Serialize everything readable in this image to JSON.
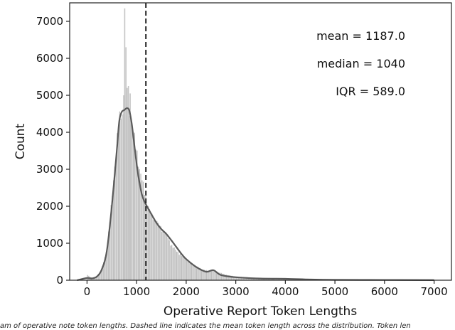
{
  "chart_data": {
    "type": "histogram",
    "xlabel": "Operative Report Token Lengths",
    "ylabel": "Count",
    "xlim": [
      -350,
      7350
    ],
    "ylim": [
      0,
      7500
    ],
    "xticks": [
      0,
      1000,
      2000,
      3000,
      4000,
      5000,
      6000,
      7000
    ],
    "yticks": [
      0,
      1000,
      2000,
      3000,
      4000,
      5000,
      6000,
      7000
    ],
    "bin_width": 25,
    "histogram": {
      "x": [
        0,
        100,
        200,
        300,
        400,
        500,
        600,
        650,
        700,
        740,
        770,
        800,
        830,
        860,
        900,
        950,
        1000,
        1050,
        1100,
        1150,
        1200,
        1300,
        1400,
        1500,
        1600,
        1700,
        1800,
        2000,
        2200,
        2400,
        2600,
        2800,
        3000,
        3500,
        4000,
        4500,
        5000,
        6000,
        7000
      ],
      "values": [
        150,
        60,
        110,
        300,
        800,
        2100,
        3700,
        4300,
        4500,
        4550,
        4600,
        4700,
        4700,
        4600,
        4300,
        3900,
        3500,
        3100,
        2800,
        2450,
        2150,
        1750,
        1600,
        1400,
        1250,
        950,
        800,
        560,
        370,
        260,
        240,
        150,
        100,
        60,
        50,
        20,
        10,
        5,
        3
      ],
      "spikes": [
        {
          "x": 760,
          "value": 7350
        },
        {
          "x": 785,
          "value": 6300
        },
        {
          "x": 810,
          "value": 5200
        },
        {
          "x": 835,
          "value": 5250
        },
        {
          "x": 870,
          "value": 5050
        },
        {
          "x": 740,
          "value": 5000
        }
      ],
      "color": "#bdbdbd"
    },
    "kde": {
      "x": [
        -200,
        0,
        100,
        200,
        300,
        400,
        500,
        600,
        650,
        700,
        750,
        800,
        850,
        900,
        950,
        1000,
        1050,
        1100,
        1150,
        1200,
        1250,
        1300,
        1400,
        1500,
        1600,
        1700,
        1800,
        1900,
        2000,
        2200,
        2400,
        2550,
        2700,
        3000,
        3500,
        4000,
        4500,
        5000,
        6000,
        7000
      ],
      "values": [
        0,
        60,
        50,
        100,
        300,
        800,
        2000,
        3500,
        4300,
        4550,
        4600,
        4650,
        4600,
        4250,
        3700,
        3150,
        2700,
        2350,
        2150,
        2020,
        1900,
        1780,
        1550,
        1380,
        1250,
        1080,
        900,
        720,
        570,
        360,
        230,
        270,
        140,
        80,
        45,
        40,
        20,
        10,
        6,
        3
      ],
      "color": "#5a5a5a"
    },
    "mean_line": {
      "x": 1187.0,
      "style": "dashed",
      "color": "#222222"
    },
    "annotations": {
      "mean": "mean = 1187.0",
      "median": "median = 1040",
      "iqr": "IQR = 589.0"
    }
  },
  "caption": "am of operative note token lengths. Dashed line indicates the mean token length across the distribution. Token len"
}
